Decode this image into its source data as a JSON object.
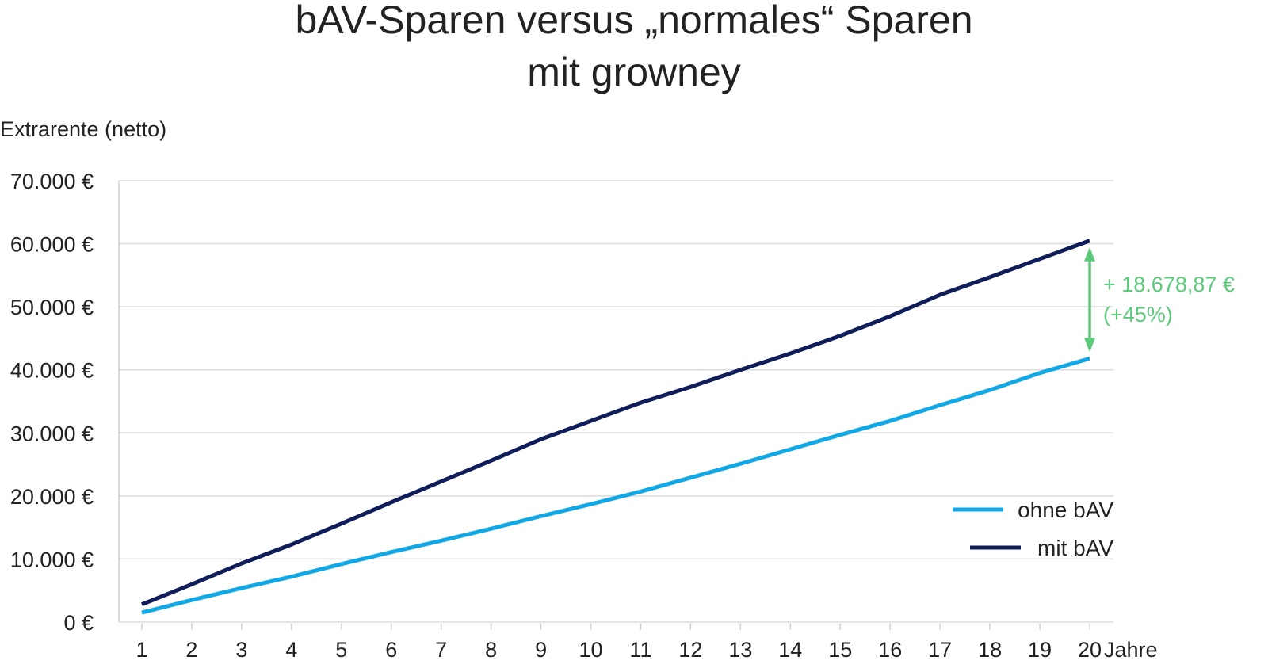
{
  "chart_data": {
    "type": "line",
    "title_line1": "bAV-Sparen versus „normales“ Sparen",
    "title_line2": "mit growney",
    "ylabel": "Extrarente (netto)",
    "xlabel": "Jahre",
    "x": [
      1,
      2,
      3,
      4,
      5,
      6,
      7,
      8,
      9,
      10,
      11,
      12,
      13,
      14,
      15,
      16,
      17,
      18,
      19,
      20
    ],
    "ylim": [
      0,
      70000
    ],
    "yticks": [
      0,
      10000,
      20000,
      30000,
      40000,
      50000,
      60000,
      70000
    ],
    "ytick_labels": [
      "0 €",
      "10.000 €",
      "20.000 €",
      "30.000 €",
      "40.000 €",
      "50.000 €",
      "60.000 €",
      "70.000 €"
    ],
    "grid": true,
    "legend_placement": "bottom-right",
    "series": [
      {
        "name": "ohne bAV",
        "color": "#12a8e6",
        "values": [
          1500,
          3500,
          5400,
          7200,
          9200,
          11100,
          12900,
          14800,
          16800,
          18700,
          20700,
          22900,
          25100,
          27400,
          29700,
          31900,
          34400,
          36800,
          39500,
          41800
        ]
      },
      {
        "name": "mit bAV",
        "color": "#0f1d5a",
        "values": [
          2800,
          6000,
          9300,
          12300,
          15600,
          19000,
          22300,
          25600,
          29000,
          31900,
          34800,
          37300,
          40000,
          42600,
          45400,
          48500,
          51900,
          54700,
          57600,
          60480
        ]
      }
    ],
    "annotation": {
      "line1": "+ 18.678,87 €",
      "line2": "(+45%)",
      "color": "#5cc97b"
    }
  }
}
